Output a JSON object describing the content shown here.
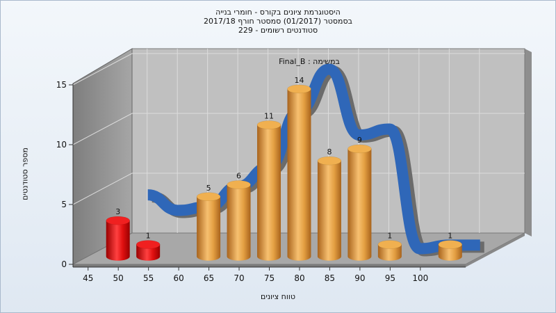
{
  "chart_data": {
    "type": "bar",
    "title_lines": [
      "היסטוגרמת ציונים בקורס - חומרי בנייה",
      "בסמסטר (01/2017) סמסטר חורף 2017/18",
      "229 - סטודנטים רשומים"
    ],
    "annotation": "Final_B : במשימה",
    "xlabel": "טווח ציונים",
    "ylabel": "מספר סטודנטים",
    "x_ticks": [
      45,
      50,
      55,
      60,
      65,
      70,
      75,
      80,
      85,
      90,
      95,
      100
    ],
    "y_ticks": [
      0,
      5,
      10,
      15
    ],
    "ylim": [
      0,
      15
    ],
    "bars": [
      {
        "x": 47.5,
        "value": 3,
        "label": "3",
        "color": "red"
      },
      {
        "x": 52.5,
        "value": 1,
        "label": "1",
        "color": "red"
      },
      {
        "x": 62.5,
        "value": 5,
        "label": "5",
        "color": "orange"
      },
      {
        "x": 67.5,
        "value": 6,
        "label": "6",
        "color": "orange"
      },
      {
        "x": 72.5,
        "value": 11,
        "label": "11",
        "color": "orange"
      },
      {
        "x": 77.5,
        "value": 14,
        "label": "14",
        "color": "orange"
      },
      {
        "x": 82.5,
        "value": 8,
        "label": "8",
        "color": "orange"
      },
      {
        "x": 87.5,
        "value": 9,
        "label": "9",
        "color": "orange"
      },
      {
        "x": 92.5,
        "value": 1,
        "label": "1",
        "color": "orange"
      },
      {
        "x": 102.5,
        "value": 1,
        "label": "1",
        "color": "orange"
      }
    ],
    "curve": {
      "x": [
        50,
        55,
        60,
        65,
        70,
        75,
        80,
        85,
        90,
        95,
        100,
        105
      ],
      "values": [
        4.5,
        3.2,
        3.5,
        5.2,
        6.8,
        11.5,
        15.0,
        9.5,
        10.0,
        0.0,
        0.3,
        0.3
      ]
    },
    "colors": {
      "red_bar": "#e01010",
      "orange_bar": "#e8a040",
      "curve": "#2f67b8",
      "curve_shadow": "#6b6b6b",
      "back_wall": "#c0c0c0",
      "side_wall": "#9a9a9a",
      "floor": "#a8a8a8"
    }
  }
}
